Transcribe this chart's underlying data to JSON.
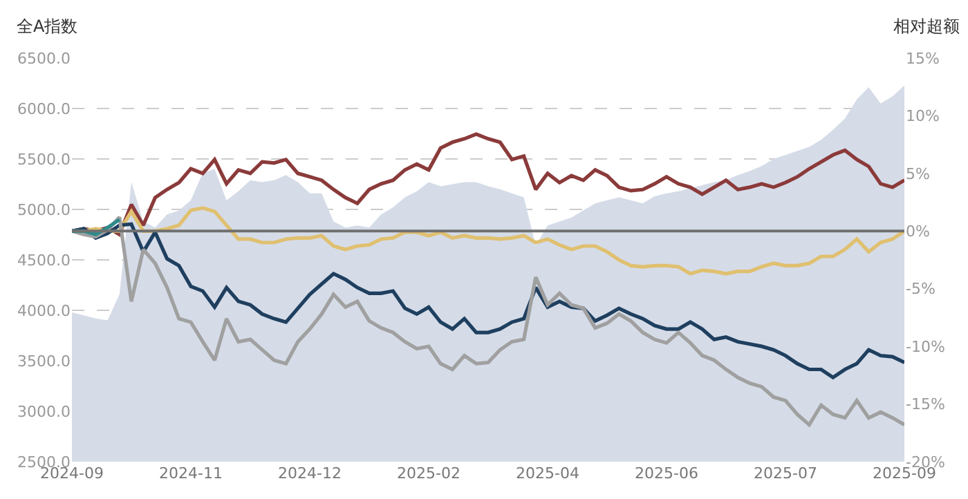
{
  "chart_data": {
    "type": "line",
    "ylabel": "全A指数",
    "y2label": "相对超额",
    "categories": [
      "2024-09",
      null,
      null,
      null,
      null,
      null,
      null,
      null,
      null,
      null,
      "2024-11",
      null,
      null,
      null,
      null,
      null,
      null,
      null,
      null,
      null,
      "2024-12",
      null,
      null,
      null,
      null,
      null,
      null,
      null,
      null,
      null,
      "2025-02",
      null,
      null,
      null,
      null,
      null,
      null,
      null,
      null,
      null,
      "2025-04",
      null,
      null,
      null,
      null,
      null,
      null,
      null,
      null,
      null,
      "2025-06",
      null,
      null,
      null,
      null,
      null,
      null,
      null,
      null,
      null,
      "2025-07",
      null,
      null,
      null,
      null,
      null,
      null,
      null,
      null,
      null,
      "2025-09"
    ],
    "series": [
      {
        "type": "area",
        "color": "#d5dce8",
        "values": [
          3980,
          3950,
          3920,
          3900,
          4160,
          5270,
          4880,
          4820,
          4950,
          4990,
          5090,
          5360,
          5400,
          5090,
          5180,
          5290,
          5270,
          5290,
          5340,
          5270,
          5160,
          5160,
          4880,
          4820,
          4840,
          4820,
          4950,
          5020,
          5120,
          5180,
          5270,
          5230,
          5250,
          5270,
          5270,
          5230,
          5200,
          5160,
          5120,
          4640,
          4840,
          4880,
          4920,
          4990,
          5060,
          5090,
          5120,
          5090,
          5060,
          5130,
          5160,
          5180,
          5210,
          5240,
          5270,
          5290,
          5340,
          5380,
          5430,
          5500,
          5540,
          5580,
          5620,
          5690,
          5790,
          5900,
          6090,
          6210,
          6050,
          6120,
          6230
        ]
      },
      {
        "axis": "y2",
        "color": "#8b3a3a",
        "values": [
          0,
          0.2,
          0,
          0.3,
          -0.3,
          2.3,
          0.5,
          2.9,
          3.6,
          4.2,
          5.4,
          5.0,
          6.2,
          4.1,
          5.3,
          5.0,
          6.0,
          5.9,
          6.2,
          5.0,
          4.7,
          4.4,
          3.6,
          2.9,
          2.4,
          3.6,
          4.1,
          4.4,
          5.3,
          5.8,
          5.3,
          7.2,
          7.7,
          8.0,
          8.4,
          8.0,
          7.7,
          6.2,
          6.5,
          3.6,
          5.0,
          4.2,
          4.8,
          4.4,
          5.3,
          4.8,
          3.8,
          3.5,
          3.6,
          4.1,
          4.7,
          4.1,
          3.8,
          3.2,
          3.8,
          4.4,
          3.6,
          3.8,
          4.1,
          3.8,
          4.2,
          4.7,
          5.4,
          6.0,
          6.6,
          7.0,
          6.2,
          5.6,
          4.1,
          3.8,
          4.4
        ]
      },
      {
        "axis": "y2",
        "color": "#e0c070",
        "values": [
          0,
          0,
          0.2,
          0,
          0,
          1.7,
          0,
          0,
          0.2,
          0.5,
          1.8,
          2.0,
          1.7,
          0.5,
          -0.7,
          -0.7,
          -1.0,
          -1.0,
          -0.7,
          -0.6,
          -0.6,
          -0.4,
          -1.3,
          -1.6,
          -1.3,
          -1.2,
          -0.7,
          -0.6,
          -0.1,
          -0.1,
          -0.4,
          -0.1,
          -0.6,
          -0.4,
          -0.6,
          -0.6,
          -0.7,
          -0.6,
          -0.4,
          -1.0,
          -0.7,
          -1.2,
          -1.6,
          -1.3,
          -1.3,
          -1.8,
          -2.5,
          -3.0,
          -3.1,
          -3.0,
          -3.0,
          -3.1,
          -3.7,
          -3.4,
          -3.5,
          -3.7,
          -3.5,
          -3.5,
          -3.1,
          -2.8,
          -3.0,
          -3.0,
          -2.8,
          -2.2,
          -2.2,
          -1.6,
          -0.7,
          -1.8,
          -1.0,
          -0.7,
          0
        ]
      },
      {
        "axis": "y2",
        "color": "#1f3f5f",
        "values": [
          0,
          0.2,
          -0.6,
          -0.2,
          0.5,
          0.6,
          -1.8,
          -0.1,
          -2.4,
          -3.0,
          -4.8,
          -5.2,
          -6.6,
          -4.9,
          -6.1,
          -6.4,
          -7.2,
          -7.6,
          -7.9,
          -6.7,
          -5.5,
          -4.6,
          -3.7,
          -4.2,
          -4.9,
          -5.4,
          -5.4,
          -5.2,
          -6.7,
          -7.2,
          -6.6,
          -7.9,
          -8.5,
          -7.6,
          -8.8,
          -8.8,
          -8.5,
          -7.9,
          -7.6,
          -4.9,
          -6.6,
          -6.1,
          -6.6,
          -6.7,
          -7.8,
          -7.3,
          -6.7,
          -7.2,
          -7.6,
          -8.2,
          -8.5,
          -8.5,
          -7.9,
          -8.5,
          -9.4,
          -9.2,
          -9.6,
          -9.8,
          -10.0,
          -10.3,
          -10.8,
          -11.5,
          -12.0,
          -12.0,
          -12.7,
          -12.0,
          -11.5,
          -10.3,
          -10.8,
          -10.9,
          -11.4
        ]
      },
      {
        "axis": "y2",
        "color": "#a0a0a0",
        "values": [
          0,
          -0.3,
          -0.5,
          0.1,
          1.2,
          -6.1,
          -1.6,
          -2.8,
          -4.9,
          -7.6,
          -7.9,
          -9.6,
          -11.2,
          -7.6,
          -9.6,
          -9.4,
          -10.3,
          -11.2,
          -11.5,
          -9.6,
          -8.5,
          -7.2,
          -5.5,
          -6.6,
          -6.1,
          -7.8,
          -8.4,
          -8.8,
          -9.6,
          -10.2,
          -10.0,
          -11.5,
          -12.0,
          -10.8,
          -11.5,
          -11.4,
          -10.3,
          -9.6,
          -9.4,
          -4.0,
          -6.4,
          -5.4,
          -6.4,
          -6.7,
          -8.4,
          -8.0,
          -7.2,
          -7.8,
          -8.8,
          -9.4,
          -9.7,
          -8.8,
          -9.7,
          -10.8,
          -11.2,
          -12.0,
          -12.7,
          -13.2,
          -13.5,
          -14.4,
          -14.7,
          -15.9,
          -16.8,
          -15.1,
          -15.9,
          -16.2,
          -14.7,
          -16.2,
          -15.7,
          -16.2,
          -16.8
        ]
      },
      {
        "axis": "y2",
        "color": "#2e8b8b",
        "values": [
          0,
          0,
          -0.3,
          0.3,
          1.0,
          null,
          null,
          null,
          null,
          null,
          null,
          null,
          null,
          null,
          null,
          null,
          null,
          null,
          null,
          null,
          null,
          null,
          null,
          null,
          null,
          null,
          null,
          null,
          null,
          null,
          null,
          null,
          null,
          null,
          null,
          null,
          null,
          null,
          null,
          null,
          null,
          null,
          null,
          null,
          null,
          null,
          null,
          null,
          null,
          null,
          null,
          null,
          null,
          null,
          null,
          null,
          null,
          null,
          null,
          null,
          null,
          null,
          null,
          null,
          null,
          null,
          null,
          null,
          null,
          null,
          null
        ]
      }
    ],
    "ylim": [
      2500,
      6500
    ],
    "yticks": [
      {
        "value": 2500,
        "label": "2500.0"
      },
      {
        "value": 3000,
        "label": "3000.0"
      },
      {
        "value": 3500,
        "label": "3500.0"
      },
      {
        "value": 4000,
        "label": "4000.0"
      },
      {
        "value": 4500,
        "label": "4500.0"
      },
      {
        "value": 5000,
        "label": "5000.0"
      },
      {
        "value": 5500,
        "label": "5500.0"
      },
      {
        "value": 6000,
        "label": "6000.0"
      },
      {
        "value": 6500,
        "label": "6500.0"
      }
    ],
    "y2lim": [
      -20,
      15
    ],
    "y2ticks": [
      {
        "value": -20,
        "label": "-20%"
      },
      {
        "value": -15,
        "label": "-15%"
      },
      {
        "value": -10,
        "label": "-10%"
      },
      {
        "value": -5,
        "label": "-5%"
      },
      {
        "value": 0,
        "label": "0%"
      },
      {
        "value": 5,
        "label": "5%"
      },
      {
        "value": 10,
        "label": "10%"
      },
      {
        "value": 15,
        "label": "15%"
      }
    ],
    "ref_lines": [
      {
        "axis": "y2",
        "value": 0,
        "color": "#707070"
      }
    ],
    "grid": "y",
    "marker": "none",
    "line_style": "solid"
  }
}
